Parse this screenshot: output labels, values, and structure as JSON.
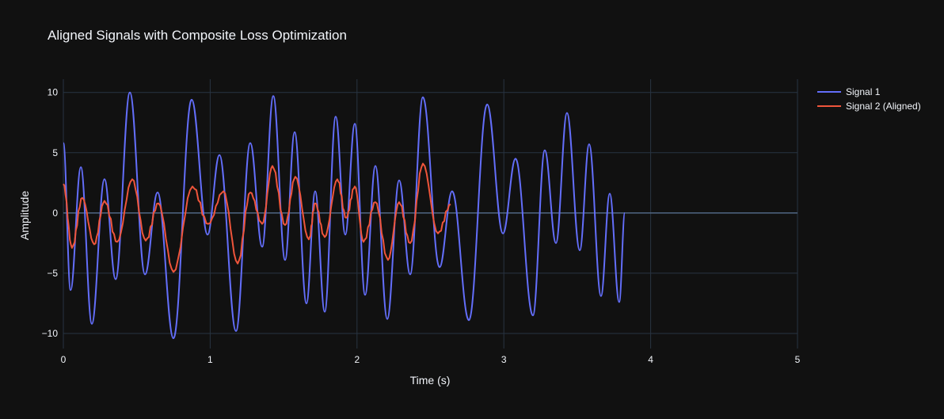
{
  "chart_data": {
    "type": "line",
    "title": "Aligned Signals with Composite Loss Optimization",
    "xlabel": "Time (s)",
    "ylabel": "Amplitude",
    "xlim": [
      0,
      5
    ],
    "ylim": [
      -11.25,
      11.1
    ],
    "x_ticks": [
      0,
      1,
      2,
      3,
      4,
      5
    ],
    "x_tick_labels": [
      "0",
      "1",
      "2",
      "3",
      "4",
      "5"
    ],
    "y_ticks": [
      -10,
      -5,
      0,
      5,
      10
    ],
    "y_tick_labels": [
      "−10",
      "−5",
      "0",
      "5",
      "10"
    ],
    "grid": true,
    "legend_placement": "top-right, outside",
    "background_color": "#111111",
    "grid_color": "#283442",
    "series": [
      {
        "name": "Signal 1",
        "color": "#636efa",
        "x": [
          0,
          0.049,
          0.119,
          0.194,
          0.28,
          0.356,
          0.453,
          0.556,
          0.642,
          0.75,
          0.874,
          0.982,
          1.063,
          1.176,
          1.273,
          1.354,
          1.43,
          1.51,
          1.575,
          1.656,
          1.715,
          1.78,
          1.855,
          1.92,
          1.985,
          2.055,
          2.125,
          2.206,
          2.287,
          2.362,
          2.449,
          2.562,
          2.648,
          2.762,
          2.886,
          2.994,
          3.08,
          3.198,
          3.279,
          3.355,
          3.43,
          3.517,
          3.581,
          3.662,
          3.721,
          3.786,
          3.824
        ],
        "y": [
          5.8,
          -6.4,
          3.8,
          -9.2,
          2.8,
          -5.5,
          10.0,
          -5.1,
          1.7,
          -10.4,
          9.4,
          -1.8,
          4.8,
          -9.8,
          5.8,
          -2.8,
          9.7,
          -3.9,
          6.7,
          -7.5,
          1.8,
          -8.2,
          8.0,
          -1.8,
          7.4,
          -6.8,
          3.9,
          -8.8,
          2.7,
          -5.1,
          9.6,
          -4.5,
          1.8,
          -8.9,
          9.0,
          -1.7,
          4.5,
          -8.5,
          5.2,
          -2.5,
          8.3,
          -3.1,
          5.7,
          -6.9,
          1.6,
          -7.4,
          0
        ]
      },
      {
        "name": "Signal 2 (Aligned)",
        "color": "#EF553B",
        "x": [
          0,
          0.059,
          0.129,
          0.21,
          0.28,
          0.367,
          0.469,
          0.561,
          0.647,
          0.75,
          0.879,
          0.987,
          1.09,
          1.187,
          1.273,
          1.354,
          1.424,
          1.51,
          1.58,
          1.672,
          1.715,
          1.78,
          1.866,
          1.926,
          1.985,
          2.044,
          2.125,
          2.211,
          2.287,
          2.362,
          2.449,
          2.551,
          2.638
        ],
        "y": [
          2.4,
          -2.9,
          1.25,
          -2.6,
          1.0,
          -2.4,
          2.8,
          -2.3,
          0.8,
          -4.9,
          2.2,
          -0.9,
          1.8,
          -4.2,
          1.7,
          -0.9,
          3.9,
          -1.0,
          3.0,
          -2.2,
          0.8,
          -2.0,
          2.8,
          -0.4,
          2.2,
          -2.4,
          0.9,
          -3.9,
          0.9,
          -2.5,
          4.1,
          -1.7,
          0.7
        ]
      }
    ]
  }
}
